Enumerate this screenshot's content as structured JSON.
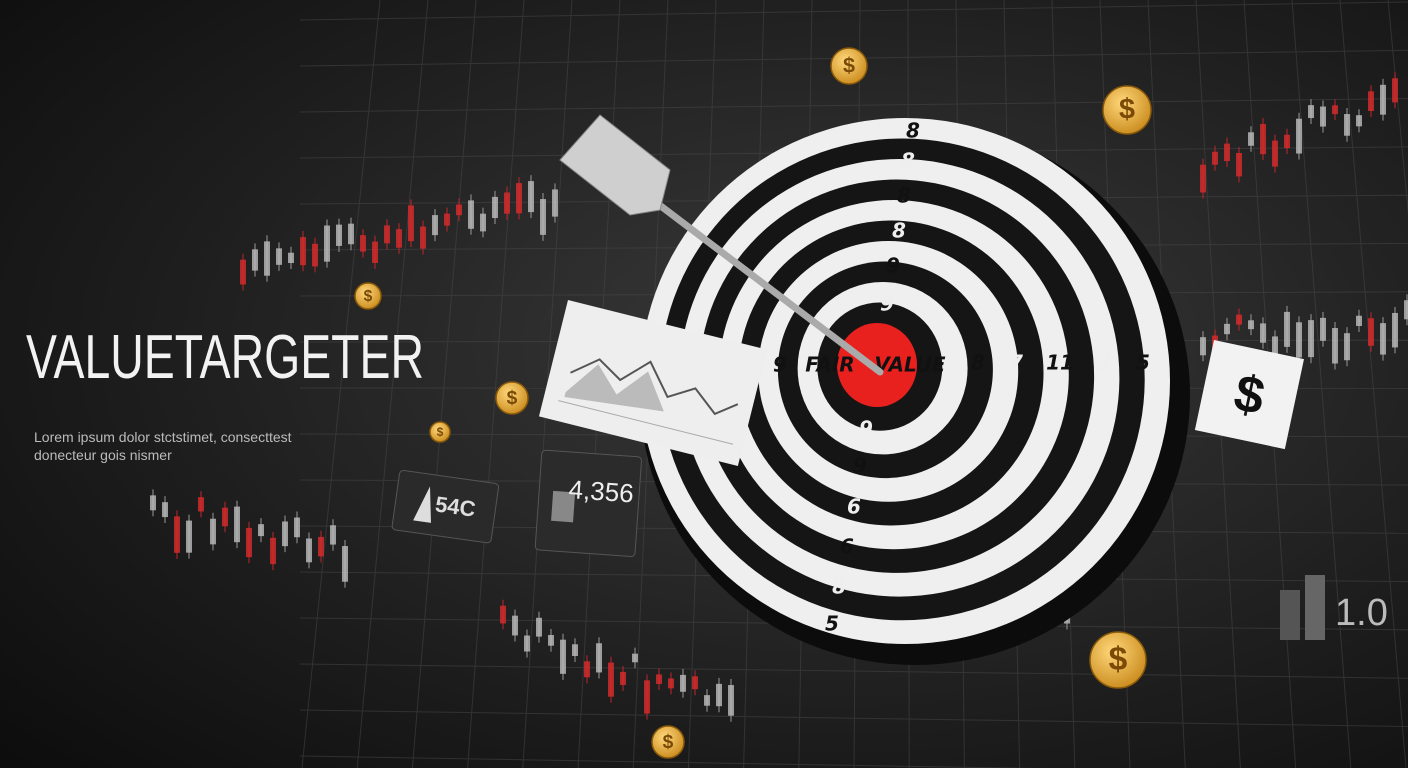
{
  "header": {
    "title": "VALUETARGETER",
    "subtitle": [
      "Lorem ipsum dolor stctstimet, consecttest",
      "donecteur gois nismer"
    ]
  },
  "target": {
    "center_labels": [
      "FAIR",
      "VALUE"
    ],
    "top_numbers": [
      "8",
      "8",
      "8",
      "8",
      "9",
      "9"
    ],
    "bottom_numbers": [
      "9",
      "9",
      "6",
      "6",
      "8",
      "5"
    ],
    "left_numbers": [
      "9"
    ],
    "right_numbers": [
      "8",
      "7",
      "11",
      "3",
      "5"
    ]
  },
  "cards": {
    "left": "54C",
    "middle": "4,356",
    "right": "1.0"
  },
  "dollar_card": "$",
  "coin_symbol": "$"
}
